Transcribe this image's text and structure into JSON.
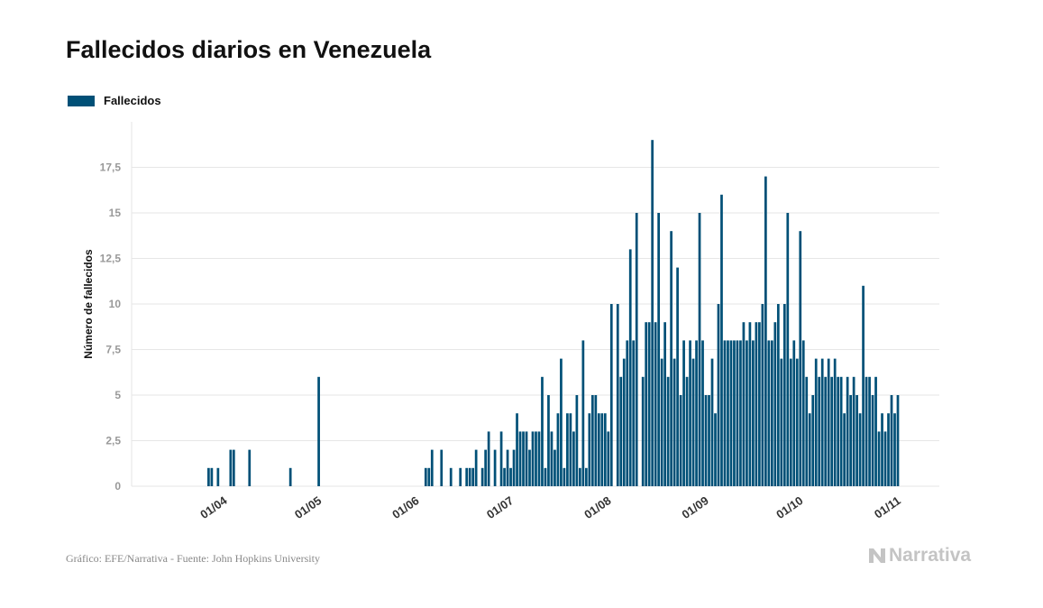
{
  "colors": {
    "bar": "#005077",
    "grid": "#e6e6e6",
    "tick_text": "#999999",
    "axis_text": "#333333"
  },
  "chart_data": {
    "type": "bar",
    "title": "Fallecidos diarios en Venezuela",
    "ylabel": "Número de fallecidos",
    "xlabel": "",
    "legend": {
      "position": "top-left",
      "entries": [
        "Fallecidos"
      ]
    },
    "grid": true,
    "x_start": "2020-03-14",
    "x_end": "2020-11-01",
    "ylim": [
      0,
      20
    ],
    "y_ticks": [
      {
        "value": 0,
        "label": "0"
      },
      {
        "value": 2.5,
        "label": "2,5"
      },
      {
        "value": 5,
        "label": "5"
      },
      {
        "value": 7.5,
        "label": "7,5"
      },
      {
        "value": 10,
        "label": "10"
      },
      {
        "value": 12.5,
        "label": "12,5"
      },
      {
        "value": 15,
        "label": "15"
      },
      {
        "value": 17.5,
        "label": "17,5"
      }
    ],
    "x_ticks": [
      {
        "date": "2020-04-01",
        "label": "01/04"
      },
      {
        "date": "2020-05-01",
        "label": "01/05"
      },
      {
        "date": "2020-06-01",
        "label": "01/06"
      },
      {
        "date": "2020-07-01",
        "label": "01/07"
      },
      {
        "date": "2020-08-01",
        "label": "01/08"
      },
      {
        "date": "2020-09-01",
        "label": "01/09"
      },
      {
        "date": "2020-10-01",
        "label": "01/10"
      },
      {
        "date": "2020-11-01",
        "label": "01/11"
      }
    ],
    "series": [
      {
        "name": "Fallecidos",
        "points": [
          [
            "2020-03-27",
            1
          ],
          [
            "2020-03-28",
            1
          ],
          [
            "2020-03-30",
            1
          ],
          [
            "2020-04-03",
            2
          ],
          [
            "2020-04-04",
            2
          ],
          [
            "2020-04-09",
            2
          ],
          [
            "2020-04-22",
            1
          ],
          [
            "2020-05-01",
            6
          ],
          [
            "2020-06-04",
            1
          ],
          [
            "2020-06-05",
            1
          ],
          [
            "2020-06-06",
            2
          ],
          [
            "2020-06-09",
            2
          ],
          [
            "2020-06-12",
            1
          ],
          [
            "2020-06-15",
            1
          ],
          [
            "2020-06-17",
            1
          ],
          [
            "2020-06-18",
            1
          ],
          [
            "2020-06-19",
            1
          ],
          [
            "2020-06-20",
            2
          ],
          [
            "2020-06-22",
            1
          ],
          [
            "2020-06-23",
            2
          ],
          [
            "2020-06-24",
            3
          ],
          [
            "2020-06-26",
            2
          ],
          [
            "2020-06-28",
            3
          ],
          [
            "2020-06-29",
            1
          ],
          [
            "2020-06-30",
            2
          ],
          [
            "2020-07-01",
            1
          ],
          [
            "2020-07-02",
            2
          ],
          [
            "2020-07-03",
            4
          ],
          [
            "2020-07-04",
            3
          ],
          [
            "2020-07-05",
            3
          ],
          [
            "2020-07-06",
            3
          ],
          [
            "2020-07-07",
            2
          ],
          [
            "2020-07-08",
            3
          ],
          [
            "2020-07-09",
            3
          ],
          [
            "2020-07-10",
            3
          ],
          [
            "2020-07-11",
            6
          ],
          [
            "2020-07-12",
            1
          ],
          [
            "2020-07-13",
            5
          ],
          [
            "2020-07-14",
            3
          ],
          [
            "2020-07-15",
            2
          ],
          [
            "2020-07-16",
            4
          ],
          [
            "2020-07-17",
            7
          ],
          [
            "2020-07-18",
            1
          ],
          [
            "2020-07-19",
            4
          ],
          [
            "2020-07-20",
            4
          ],
          [
            "2020-07-21",
            3
          ],
          [
            "2020-07-22",
            5
          ],
          [
            "2020-07-23",
            1
          ],
          [
            "2020-07-24",
            8
          ],
          [
            "2020-07-25",
            1
          ],
          [
            "2020-07-26",
            4
          ],
          [
            "2020-07-27",
            5
          ],
          [
            "2020-07-28",
            5
          ],
          [
            "2020-07-29",
            4
          ],
          [
            "2020-07-30",
            4
          ],
          [
            "2020-07-31",
            4
          ],
          [
            "2020-08-01",
            3
          ],
          [
            "2020-08-02",
            10
          ],
          [
            "2020-08-04",
            10
          ],
          [
            "2020-08-05",
            6
          ],
          [
            "2020-08-06",
            7
          ],
          [
            "2020-08-07",
            8
          ],
          [
            "2020-08-08",
            13
          ],
          [
            "2020-08-09",
            8
          ],
          [
            "2020-08-10",
            15
          ],
          [
            "2020-08-12",
            6
          ],
          [
            "2020-08-13",
            9
          ],
          [
            "2020-08-14",
            9
          ],
          [
            "2020-08-15",
            19
          ],
          [
            "2020-08-16",
            9
          ],
          [
            "2020-08-17",
            15
          ],
          [
            "2020-08-18",
            7
          ],
          [
            "2020-08-19",
            9
          ],
          [
            "2020-08-20",
            6
          ],
          [
            "2020-08-21",
            14
          ],
          [
            "2020-08-22",
            7
          ],
          [
            "2020-08-23",
            12
          ],
          [
            "2020-08-24",
            5
          ],
          [
            "2020-08-25",
            8
          ],
          [
            "2020-08-26",
            6
          ],
          [
            "2020-08-27",
            8
          ],
          [
            "2020-08-28",
            7
          ],
          [
            "2020-08-29",
            8
          ],
          [
            "2020-08-30",
            15
          ],
          [
            "2020-08-31",
            8
          ],
          [
            "2020-09-01",
            5
          ],
          [
            "2020-09-02",
            5
          ],
          [
            "2020-09-03",
            7
          ],
          [
            "2020-09-04",
            4
          ],
          [
            "2020-09-05",
            10
          ],
          [
            "2020-09-06",
            16
          ],
          [
            "2020-09-07",
            8
          ],
          [
            "2020-09-08",
            8
          ],
          [
            "2020-09-09",
            8
          ],
          [
            "2020-09-10",
            8
          ],
          [
            "2020-09-11",
            8
          ],
          [
            "2020-09-12",
            8
          ],
          [
            "2020-09-13",
            9
          ],
          [
            "2020-09-14",
            8
          ],
          [
            "2020-09-15",
            9
          ],
          [
            "2020-09-16",
            8
          ],
          [
            "2020-09-17",
            9
          ],
          [
            "2020-09-18",
            9
          ],
          [
            "2020-09-19",
            10
          ],
          [
            "2020-09-20",
            17
          ],
          [
            "2020-09-21",
            8
          ],
          [
            "2020-09-22",
            8
          ],
          [
            "2020-09-23",
            9
          ],
          [
            "2020-09-24",
            10
          ],
          [
            "2020-09-25",
            7
          ],
          [
            "2020-09-26",
            10
          ],
          [
            "2020-09-27",
            15
          ],
          [
            "2020-09-28",
            7
          ],
          [
            "2020-09-29",
            8
          ],
          [
            "2020-09-30",
            7
          ],
          [
            "2020-10-01",
            14
          ],
          [
            "2020-10-02",
            8
          ],
          [
            "2020-10-03",
            6
          ],
          [
            "2020-10-04",
            4
          ],
          [
            "2020-10-05",
            5
          ],
          [
            "2020-10-06",
            7
          ],
          [
            "2020-10-07",
            6
          ],
          [
            "2020-10-08",
            7
          ],
          [
            "2020-10-09",
            6
          ],
          [
            "2020-10-10",
            7
          ],
          [
            "2020-10-11",
            6
          ],
          [
            "2020-10-12",
            7
          ],
          [
            "2020-10-13",
            6
          ],
          [
            "2020-10-14",
            6
          ],
          [
            "2020-10-15",
            4
          ],
          [
            "2020-10-16",
            6
          ],
          [
            "2020-10-17",
            5
          ],
          [
            "2020-10-18",
            6
          ],
          [
            "2020-10-19",
            5
          ],
          [
            "2020-10-20",
            4
          ],
          [
            "2020-10-21",
            11
          ],
          [
            "2020-10-22",
            6
          ],
          [
            "2020-10-23",
            6
          ],
          [
            "2020-10-24",
            5
          ],
          [
            "2020-10-25",
            6
          ],
          [
            "2020-10-26",
            3
          ],
          [
            "2020-10-27",
            4
          ],
          [
            "2020-10-28",
            3
          ],
          [
            "2020-10-29",
            4
          ],
          [
            "2020-10-30",
            5
          ],
          [
            "2020-10-31",
            4
          ],
          [
            "2020-11-01",
            5
          ]
        ]
      }
    ]
  },
  "footer": {
    "source": "Gráfico: EFE/Narrativa - Fuente: John Hopkins University",
    "logo_text": "Narrativa"
  }
}
